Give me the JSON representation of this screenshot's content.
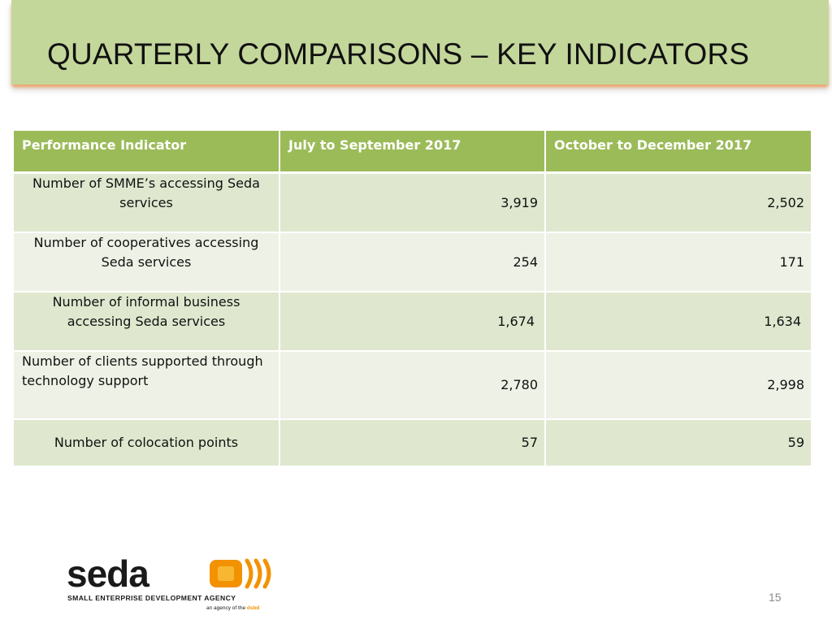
{
  "header": {
    "title": "QUARTERLY COMPARISONS – KEY INDICATORS"
  },
  "table": {
    "headers": [
      "Performance Indicator",
      "July to September 2017",
      "October to December 2017"
    ],
    "rows": [
      {
        "indicator": "Number of SMME’s accessing Seda services",
        "q3": "3,919",
        "q4": "2,502"
      },
      {
        "indicator": "Number of cooperatives accessing Seda services",
        "q3": "254",
        "q4": "171"
      },
      {
        "indicator": "Number of informal business accessing Seda services",
        "q3": "1,674",
        "q4": "1,634"
      },
      {
        "indicator": "Number of clients  supported through technology support",
        "q3": "2,780",
        "q4": "2,998"
      },
      {
        "indicator": "Number of colocation points",
        "q3": "57",
        "q4": "59"
      }
    ]
  },
  "logo": {
    "wordmark": "seda",
    "tagline": "SMALL ENTERPRISE DEVELOPMENT AGENCY",
    "subline_prefix": "an agency of the ",
    "subline_org": "dsbd",
    "colors": {
      "wordmark": "#1a1a1a",
      "mark": "#f39200",
      "mark_inner": "#f7b733"
    }
  },
  "footer": {
    "page_number": "15"
  },
  "colors": {
    "title_bar": "#c4d79b",
    "header_row": "#9bbb59",
    "row_dark": "#dfe8cf",
    "row_light": "#eef2e6"
  }
}
